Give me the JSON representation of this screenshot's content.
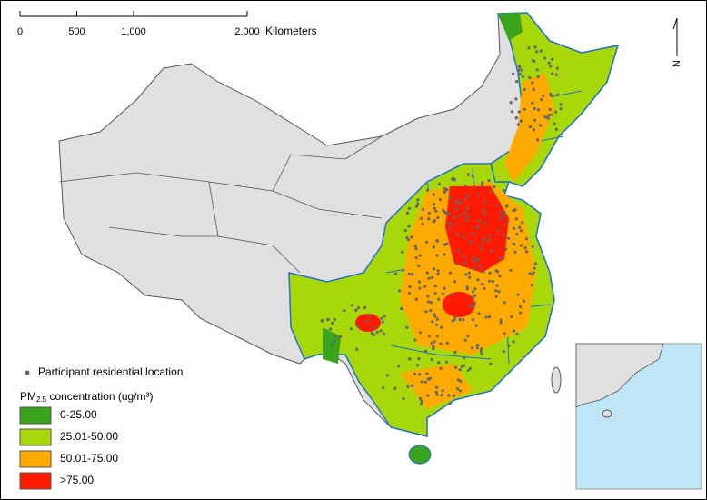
{
  "scale_bar": {
    "ticks": [
      0,
      500,
      {
        "value": 1000,
        "label": "1,000"
      },
      {
        "value": 2000,
        "label": "2,000"
      }
    ],
    "unit": "Kilometers"
  },
  "north_arrow": {
    "label": "N"
  },
  "legend": {
    "points_label": "Participant residential location",
    "title": {
      "main": "PM",
      "subscript": "2.5",
      "rest": " concentration (ug/m³)"
    },
    "classes": [
      {
        "label": "0-25.00",
        "color": "#3aa51c"
      },
      {
        "label": "25.01-50.00",
        "color": "#a8d80a"
      },
      {
        "label": "50.01-75.00",
        "color": "#ffaa00"
      },
      {
        "label": ">75.00",
        "color": "#ff1a00"
      }
    ]
  }
}
